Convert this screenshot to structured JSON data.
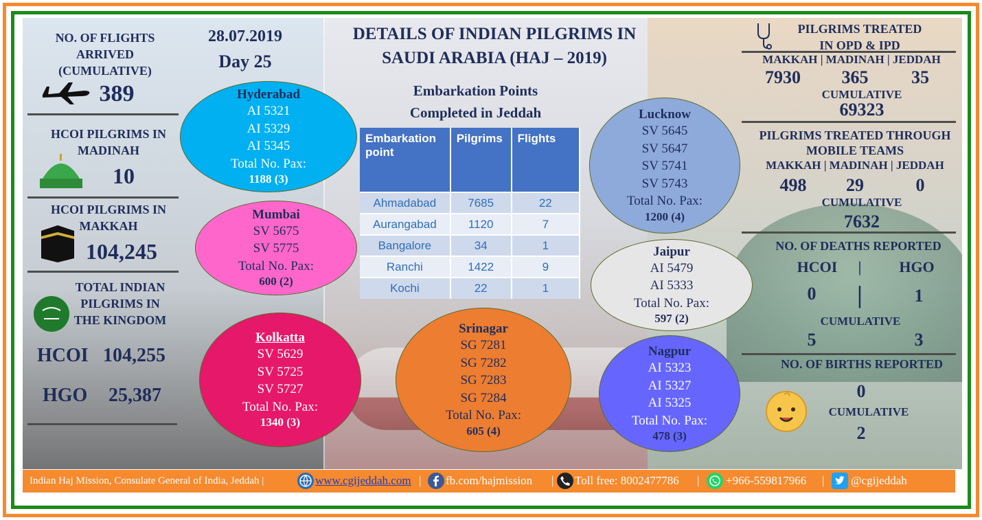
{
  "left_panel": {
    "flights_title": "NO. OF FLIGHTS\nARRIVED\n(CUMULATIVE)",
    "flights_value": "389",
    "madinah_title": "HCOI PILGRIMS IN\nMADINAH",
    "madinah_value": "10",
    "makkah_title": "HCOI PILGRIMS IN\nMAKKAH",
    "makkah_value": "104,245",
    "total_title": "TOTAL INDIAN\nPILGRIMS IN\nTHE KINGDOM",
    "hcoi_label": "HCOI",
    "hcoi_value": "104,255",
    "hgo_label": "HGO",
    "hgo_value": "25,387"
  },
  "header": {
    "date": "28.07.2019",
    "day": "Day 25",
    "title": "DETAILS OF INDIAN PILGRIMS IN\nSAUDI ARABIA (HAJ – 2019)",
    "subtitle": "Embarkation Points\nCompleted in Jeddah"
  },
  "table": {
    "headers": [
      "Embarkation point",
      "Pilgrims",
      "Flights"
    ],
    "rows": [
      [
        "Ahmadabad",
        "7685",
        "22"
      ],
      [
        "Aurangabad",
        "1120",
        "7"
      ],
      [
        "Bangalore",
        "34",
        "1"
      ],
      [
        "Ranchi",
        "1422",
        "9"
      ],
      [
        "Kochi",
        "22",
        "1"
      ]
    ]
  },
  "cities": {
    "hyderabad": {
      "city": "Hyderabad",
      "flights": [
        "AI 5321",
        "AI 5329",
        "AI 5345"
      ],
      "total_label": "Total No. Pax:",
      "total": "1188 (3)",
      "color": "#00b0f0"
    },
    "mumbai": {
      "city": "Mumbai",
      "flights": [
        "SV 5675",
        "SV 5775"
      ],
      "total_label": "Total No. Pax:",
      "total": "600 (2)",
      "color": "#ff66cc"
    },
    "kolkatta": {
      "city": "Kolkatta",
      "flights": [
        "SV 5629",
        "SV 5725",
        "SV 5727"
      ],
      "total_label": "Total No. Pax:",
      "total": "1340 (3)",
      "color": "#e6186a"
    },
    "srinagar": {
      "city": "Srinagar",
      "flights": [
        "SG 7281",
        "SG 7282",
        "SG 7283",
        "SG 7284"
      ],
      "total_label": "Total No. Pax:",
      "total": "605 (4)",
      "color": "#ed7d31"
    },
    "lucknow": {
      "city": "Lucknow",
      "flights": [
        "SV 5645",
        "SV 5647",
        "SV 5741",
        "SV 5743"
      ],
      "total_label": "Total No. Pax:",
      "total": "1200 (4)",
      "color": "#8eaadb"
    },
    "jaipur": {
      "city": "Jaipur",
      "flights": [
        "AI 5479",
        "AI 5333"
      ],
      "total_label": "Total No. Pax:",
      "total": "597 (2)",
      "color": "#e7e6e6"
    },
    "nagpur": {
      "city": "Nagpur",
      "flights": [
        "AI 5323",
        "AI 5327",
        "AI 5325"
      ],
      "total_label": "Total No. Pax:",
      "total": "478 (3)",
      "color": "#6666ff"
    }
  },
  "right_panel": {
    "opd_title": "PILGRIMS TREATED\nIN OPD & IPD",
    "opd_cities": "MAKKAH | MADINAH | JEDDAH",
    "opd_makkah": "7930",
    "opd_madinah": "365",
    "opd_jeddah": "35",
    "cumulative_label": "CUMULATIVE",
    "opd_cumulative": "69323",
    "mobile_title": "PILGRIMS TREATED THROUGH\nMOBILE TEAMS",
    "mobile_cities": "MAKKAH | MADINAH | JEDDAH",
    "mobile_makkah": "498",
    "mobile_madinah": "29",
    "mobile_jeddah": "0",
    "mobile_cumulative": "7632",
    "deaths_title": "NO. OF DEATHS REPORTED",
    "deaths_hcoi_label": "HCOI",
    "deaths_sep": "|",
    "deaths_hgo_label": "HGO",
    "deaths_hcoi": "0",
    "deaths_hgo": "1",
    "deaths_cum_hcoi": "5",
    "deaths_cum_hgo": "3",
    "births_title": "NO. OF BIRTHS REPORTED",
    "births_value": "0",
    "births_cumulative": "2"
  },
  "footer": {
    "org": "Indian Haj Mission, Consulate General of India, Jeddah |",
    "website": "www.cgijeddah.com",
    "facebook": "fb.com/hajmission",
    "tollfree": "Toll free: 8002477786",
    "whatsapp": "+966-559817966",
    "twitter": "@cgijeddah",
    "sep": "|"
  }
}
